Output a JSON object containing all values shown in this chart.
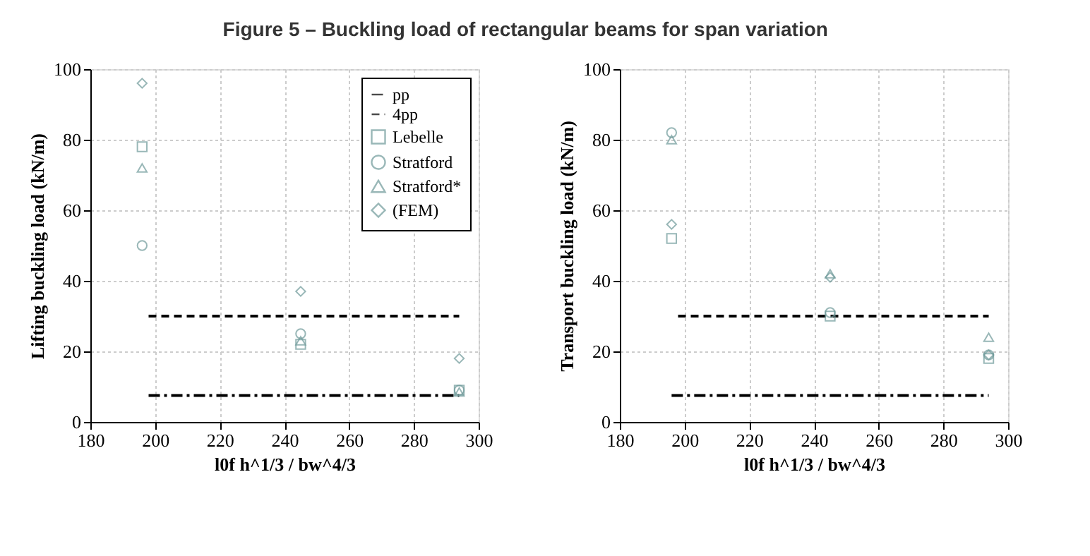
{
  "chart_data": [
    {
      "type": "scatter",
      "title": "Figure 5 – Buckling load of rectangular beams for span variation",
      "xlabel": "l0f h^1/3 / bw^4/3",
      "ylabel": "Lifting buckling load (kN/m)",
      "xlim": [
        180,
        300
      ],
      "xticks": [
        180,
        200,
        220,
        240,
        260,
        280,
        300
      ],
      "ylim": [
        0,
        100
      ],
      "yticks": [
        0,
        20,
        40,
        60,
        80,
        100
      ],
      "grid": true,
      "legend": "top right",
      "series": [
        {
          "name": "pp",
          "type": "line",
          "line_style": "dashdot",
          "color": "#000000",
          "x": [
            198,
            294
          ],
          "values": [
            7.5,
            7.5
          ]
        },
        {
          "name": "4pp",
          "type": "line",
          "line_style": "dashed",
          "color": "#000000",
          "x": [
            198,
            294
          ],
          "values": [
            30,
            30
          ]
        },
        {
          "name": "Lebelle",
          "marker": "square",
          "color": "#6f9a9a",
          "x": [
            196,
            245,
            294
          ],
          "values": [
            78,
            22,
            9
          ]
        },
        {
          "name": "Stratford",
          "marker": "circle",
          "color": "#6f9a9a",
          "x": [
            196,
            245,
            294
          ],
          "values": [
            50,
            25,
            9
          ]
        },
        {
          "name": "Stratford*",
          "marker": "triangle",
          "color": "#6f9a9a",
          "x": [
            196,
            245,
            294
          ],
          "values": [
            72,
            23,
            8.5
          ]
        },
        {
          "name": "(FEM)",
          "marker": "diamond",
          "color": "#6f9a9a",
          "x": [
            196,
            245,
            294
          ],
          "values": [
            96,
            37,
            18
          ]
        }
      ]
    },
    {
      "type": "scatter",
      "xlabel": "l0f h^1/3 / bw^4/3",
      "ylabel": "Transport buckling load (kN/m)",
      "xlim": [
        180,
        300
      ],
      "xticks": [
        180,
        200,
        220,
        240,
        260,
        280,
        300
      ],
      "ylim": [
        0,
        100
      ],
      "yticks": [
        0,
        20,
        40,
        60,
        80,
        100
      ],
      "grid": true,
      "legend": false,
      "series": [
        {
          "type": "line",
          "line_style": "dashdot",
          "color": "#000000",
          "x": [
            196,
            294
          ],
          "values": [
            7.5,
            7.5
          ]
        },
        {
          "type": "line",
          "line_style": "dashed",
          "color": "#000000",
          "x": [
            198,
            294
          ],
          "values": [
            30,
            30
          ]
        },
        {
          "marker": "square",
          "color": "#6f9a9a",
          "x": [
            196,
            245,
            294
          ],
          "values": [
            52,
            30,
            18
          ]
        },
        {
          "marker": "circle",
          "color": "#6f9a9a",
          "x": [
            196,
            245,
            294
          ],
          "values": [
            82,
            31,
            19
          ]
        },
        {
          "marker": "triangle",
          "color": "#6f9a9a",
          "x": [
            196,
            245,
            294
          ],
          "values": [
            80,
            42,
            24
          ]
        },
        {
          "marker": "diamond",
          "color": "#6f9a9a",
          "x": [
            196,
            245,
            294
          ],
          "values": [
            56,
            41,
            19
          ]
        }
      ]
    }
  ]
}
